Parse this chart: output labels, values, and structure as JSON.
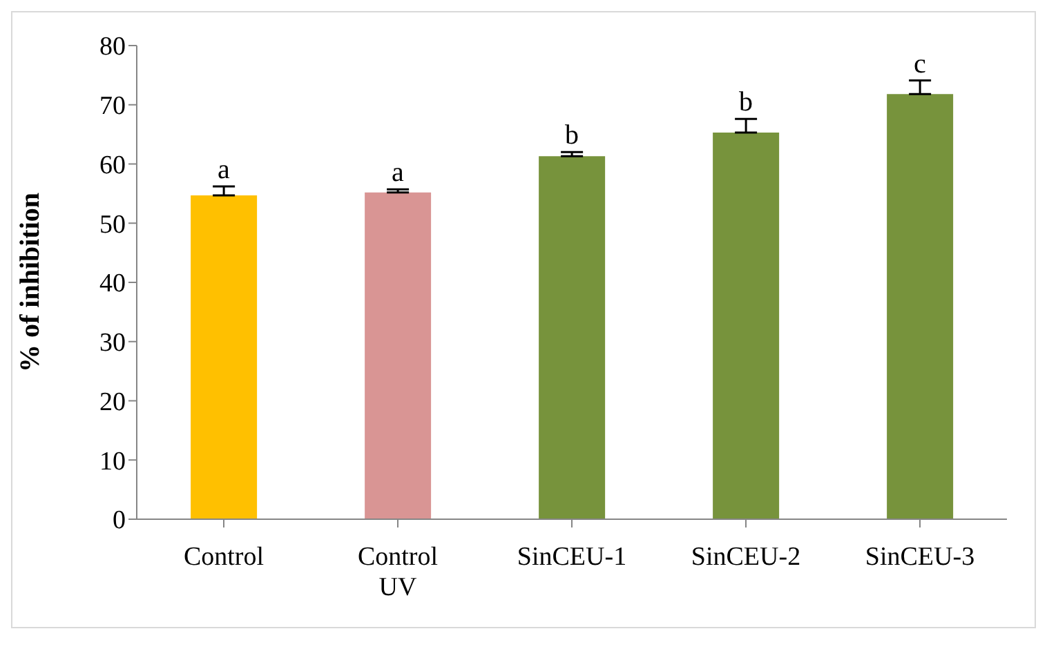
{
  "chart_data": {
    "type": "bar",
    "ylabel": "% of inhibition",
    "categories": [
      "Control",
      "Control UV",
      "SinCEU-1",
      "SinCEU-2",
      "SinCEU-3"
    ],
    "values": [
      54.7,
      55.2,
      61.3,
      65.3,
      71.8
    ],
    "colors": [
      "#ffc000",
      "#d99594",
      "#77933c",
      "#77933c",
      "#77933c"
    ],
    "errors": [
      [
        54.7,
        56.2
      ],
      [
        55.2,
        55.7
      ],
      [
        61.3,
        62.0
      ],
      [
        65.3,
        67.6
      ],
      [
        71.8,
        74.1
      ]
    ],
    "ylim": [
      0,
      80
    ],
    "yticks": [
      0,
      10,
      20,
      30,
      40,
      50,
      60,
      70,
      80
    ],
    "grid": false,
    "annotations": [
      "a",
      "a",
      "b",
      "b",
      "c"
    ]
  }
}
